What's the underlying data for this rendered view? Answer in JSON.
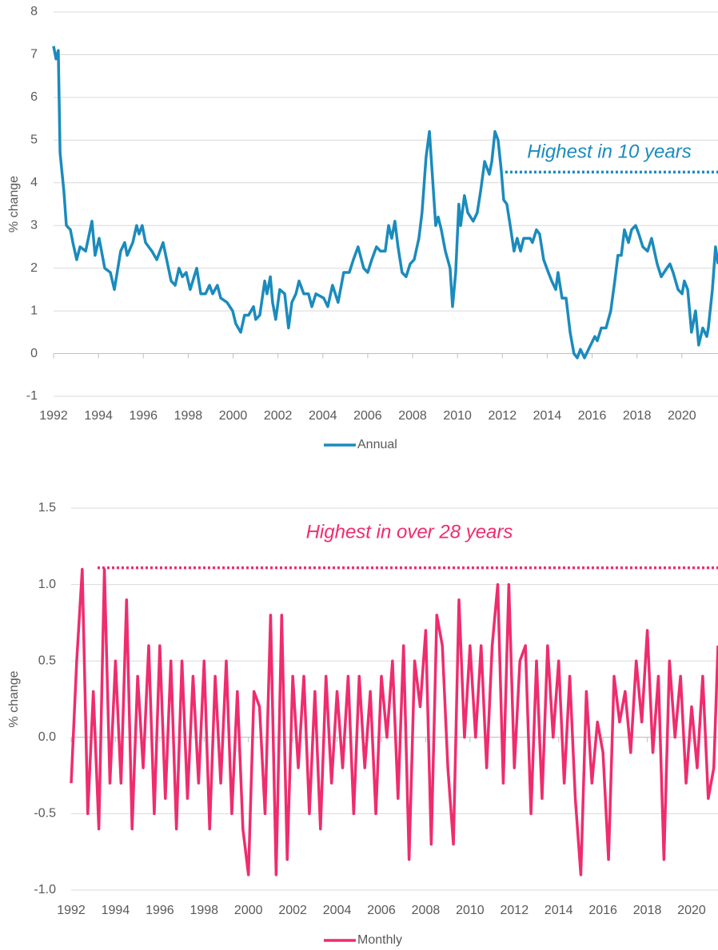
{
  "chart_data": [
    {
      "type": "line",
      "ylabel": "% change",
      "x": [
        1992.0,
        1992.11,
        1992.21,
        1992.29,
        1992.46,
        1992.57,
        1992.75,
        1992.86,
        1993.03,
        1993.18,
        1993.43,
        1993.71,
        1993.85,
        1994.03,
        1994.28,
        1994.53,
        1994.71,
        1994.99,
        1995.17,
        1995.28,
        1995.53,
        1995.7,
        1995.81,
        1995.95,
        1996.1,
        1996.38,
        1996.6,
        1996.88,
        1997.24,
        1997.42,
        1997.59,
        1997.74,
        1997.91,
        1998.09,
        1998.38,
        1998.56,
        1998.77,
        1998.95,
        1999.09,
        1999.3,
        1999.45,
        1999.73,
        1999.98,
        2000.12,
        2000.34,
        2000.51,
        2000.69,
        2000.91,
        2001.01,
        2001.19,
        2001.41,
        2001.51,
        2001.66,
        2001.76,
        2001.9,
        2002.08,
        2002.3,
        2002.47,
        2002.62,
        2002.8,
        2002.94,
        2003.15,
        2003.36,
        2003.51,
        2003.69,
        2004.04,
        2004.22,
        2004.43,
        2004.68,
        2004.93,
        2005.18,
        2005.36,
        2005.57,
        2005.82,
        2006.0,
        2006.18,
        2006.39,
        2006.57,
        2006.78,
        2006.93,
        2007.07,
        2007.21,
        2007.35,
        2007.53,
        2007.71,
        2007.89,
        2008.07,
        2008.28,
        2008.42,
        2008.6,
        2008.75,
        2008.89,
        2009.03,
        2009.14,
        2009.28,
        2009.46,
        2009.67,
        2009.78,
        2009.92,
        2010.06,
        2010.14,
        2010.31,
        2010.46,
        2010.7,
        2010.88,
        2011.03,
        2011.21,
        2011.42,
        2011.53,
        2011.67,
        2011.81,
        2011.95,
        2012.06,
        2012.2,
        2012.35,
        2012.52,
        2012.66,
        2012.81,
        2012.95,
        2013.24,
        2013.34,
        2013.52,
        2013.66,
        2013.84,
        2014.05,
        2014.2,
        2014.38,
        2014.48,
        2014.66,
        2014.84,
        2015.02,
        2015.19,
        2015.34,
        2015.48,
        2015.66,
        2015.84,
        2016.12,
        2016.23,
        2016.41,
        2016.62,
        2016.83,
        2017.01,
        2017.15,
        2017.3,
        2017.44,
        2017.62,
        2017.76,
        2017.94,
        2018.08,
        2018.26,
        2018.47,
        2018.65,
        2018.9,
        2019.08,
        2019.33,
        2019.47,
        2019.61,
        2019.83,
        2020.01,
        2020.11,
        2020.26,
        2020.43,
        2020.61,
        2020.75,
        2020.93,
        2021.11,
        2021.18,
        2021.36,
        2021.5,
        2021.61
      ],
      "series": [
        {
          "name": "Annual",
          "color": "#1b8bbd",
          "values": [
            7.2,
            6.9,
            7.1,
            4.7,
            3.8,
            3.0,
            2.9,
            2.6,
            2.2,
            2.5,
            2.4,
            3.1,
            2.3,
            2.7,
            2.0,
            1.9,
            1.5,
            2.4,
            2.6,
            2.3,
            2.6,
            3.0,
            2.8,
            3.0,
            2.6,
            2.4,
            2.2,
            2.6,
            1.7,
            1.6,
            2.0,
            1.8,
            1.9,
            1.5,
            2.0,
            1.4,
            1.4,
            1.6,
            1.4,
            1.6,
            1.3,
            1.2,
            1.0,
            0.7,
            0.5,
            0.9,
            0.9,
            1.1,
            0.8,
            0.9,
            1.7,
            1.4,
            1.8,
            1.2,
            0.8,
            1.5,
            1.4,
            0.6,
            1.2,
            1.4,
            1.7,
            1.4,
            1.4,
            1.1,
            1.4,
            1.3,
            1.1,
            1.6,
            1.2,
            1.9,
            1.9,
            2.2,
            2.5,
            2.0,
            1.9,
            2.2,
            2.5,
            2.4,
            2.4,
            3.0,
            2.7,
            3.1,
            2.5,
            1.9,
            1.8,
            2.1,
            2.2,
            2.7,
            3.3,
            4.6,
            5.2,
            4.1,
            3.0,
            3.2,
            2.9,
            2.4,
            2.0,
            1.1,
            1.9,
            3.5,
            3.0,
            3.7,
            3.3,
            3.1,
            3.3,
            3.8,
            4.5,
            4.2,
            4.5,
            5.2,
            5.0,
            4.3,
            3.6,
            3.5,
            3.0,
            2.4,
            2.7,
            2.4,
            2.7,
            2.7,
            2.6,
            2.9,
            2.8,
            2.2,
            1.9,
            1.7,
            1.5,
            1.9,
            1.3,
            1.3,
            0.5,
            0.0,
            -0.1,
            0.1,
            -0.1,
            0.1,
            0.4,
            0.3,
            0.6,
            0.6,
            1.0,
            1.7,
            2.3,
            2.3,
            2.9,
            2.6,
            2.9,
            3.0,
            2.8,
            2.5,
            2.4,
            2.7,
            2.1,
            1.8,
            2.0,
            2.1,
            1.9,
            1.5,
            1.4,
            1.7,
            1.5,
            0.5,
            1.0,
            0.2,
            0.6,
            0.4,
            0.6,
            1.5,
            2.5,
            2.1
          ]
        }
      ],
      "xlim": [
        1992,
        2021.61
      ],
      "ylim": [
        -1,
        8
      ],
      "xticks": [
        1992,
        1994,
        1996,
        1998,
        2000,
        2002,
        2004,
        2006,
        2008,
        2010,
        2012,
        2014,
        2016,
        2018,
        2020
      ],
      "yticks": [
        -1,
        0,
        1,
        2,
        3,
        4,
        5,
        6,
        7,
        8
      ],
      "grid": true,
      "legend": "bottom",
      "annotation": {
        "text": "Highest in 10 years",
        "x_start": 2012.13,
        "value": 4.25
      }
    },
    {
      "type": "line",
      "ylabel": "% change",
      "x": [
        1992,
        1992.25,
        1992.5,
        1992.75,
        1993,
        1993.25,
        1993.5,
        1993.75,
        1994,
        1994.25,
        1994.5,
        1994.75,
        1995,
        1995.25,
        1995.5,
        1995.75,
        1996,
        1996.25,
        1996.5,
        1996.75,
        1997,
        1997.25,
        1997.5,
        1997.75,
        1998,
        1998.25,
        1998.5,
        1998.75,
        1999,
        1999.25,
        1999.5,
        1999.75,
        2000,
        2000.25,
        2000.5,
        2000.75,
        2001,
        2001.25,
        2001.5,
        2001.75,
        2002,
        2002.25,
        2002.5,
        2002.75,
        2003,
        2003.25,
        2003.5,
        2003.75,
        2004,
        2004.25,
        2004.5,
        2004.75,
        2005,
        2005.25,
        2005.5,
        2005.75,
        2006,
        2006.25,
        2006.5,
        2006.75,
        2007,
        2007.25,
        2007.5,
        2007.75,
        2008,
        2008.25,
        2008.5,
        2008.75,
        2009,
        2009.25,
        2009.5,
        2009.75,
        2010,
        2010.25,
        2010.5,
        2010.75,
        2011,
        2011.25,
        2011.5,
        2011.75,
        2012,
        2012.25,
        2012.5,
        2012.75,
        2013,
        2013.25,
        2013.5,
        2013.75,
        2014,
        2014.25,
        2014.5,
        2014.75,
        2015,
        2015.25,
        2015.5,
        2015.75,
        2016,
        2016.25,
        2016.5,
        2016.75,
        2017,
        2017.25,
        2017.5,
        2017.75,
        2018,
        2018.25,
        2018.5,
        2018.75,
        2019,
        2019.25,
        2019.5,
        2019.75,
        2020,
        2020.25,
        2020.5,
        2020.75,
        2021,
        2021.19
      ],
      "series": [
        {
          "name": "Monthly",
          "color": "#ef2c6e",
          "values": [
            -0.3,
            0.5,
            1.1,
            -0.5,
            0.3,
            -0.6,
            1.1,
            -0.3,
            0.5,
            -0.3,
            0.9,
            -0.6,
            0.4,
            -0.2,
            0.6,
            -0.5,
            0.6,
            -0.4,
            0.5,
            -0.6,
            0.5,
            -0.4,
            0.4,
            -0.3,
            0.5,
            -0.6,
            0.4,
            -0.3,
            0.5,
            -0.5,
            0.3,
            -0.6,
            -0.9,
            0.3,
            0.2,
            -0.5,
            0.8,
            -0.9,
            0.8,
            -0.8,
            0.4,
            -0.2,
            0.4,
            -0.5,
            0.3,
            -0.6,
            0.4,
            -0.3,
            0.3,
            -0.2,
            0.4,
            -0.5,
            0.4,
            -0.2,
            0.3,
            -0.5,
            0.4,
            0.0,
            0.5,
            -0.4,
            0.6,
            -0.8,
            0.5,
            0.2,
            0.7,
            -0.7,
            0.8,
            0.6,
            -0.2,
            -0.7,
            0.9,
            0.0,
            0.6,
            0.0,
            0.6,
            -0.2,
            0.6,
            1.0,
            -0.3,
            1.0,
            -0.2,
            0.5,
            0.6,
            -0.5,
            0.5,
            -0.4,
            0.6,
            0.0,
            0.5,
            -0.3,
            0.4,
            -0.4,
            -0.9,
            0.3,
            -0.3,
            0.1,
            -0.1,
            -0.8,
            0.4,
            0.1,
            0.3,
            -0.1,
            0.5,
            0.1,
            0.7,
            -0.1,
            0.4,
            -0.8,
            0.5,
            0.0,
            0.4,
            -0.3,
            0.2,
            -0.2,
            0.4,
            -0.4,
            -0.2,
            0.6
          ]
        }
      ],
      "xlim": [
        1992,
        2021.19
      ],
      "ylim": [
        -1,
        1.5
      ],
      "xticks": [
        1992,
        1994,
        1996,
        1998,
        2000,
        2002,
        2004,
        2006,
        2008,
        2010,
        2012,
        2014,
        2016,
        2018,
        2020
      ],
      "yticks": [
        {
          "value": -1,
          "label": "-1.0"
        },
        -0.5,
        {
          "value": 0,
          "label": "0.0"
        },
        0.5,
        {
          "value": 1,
          "label": "1.0"
        },
        1.5
      ],
      "grid": true,
      "legend": "bottom",
      "annotation": {
        "text": "Highest in over 28 years",
        "x_start": 1993.19,
        "value": 1.11
      }
    }
  ]
}
